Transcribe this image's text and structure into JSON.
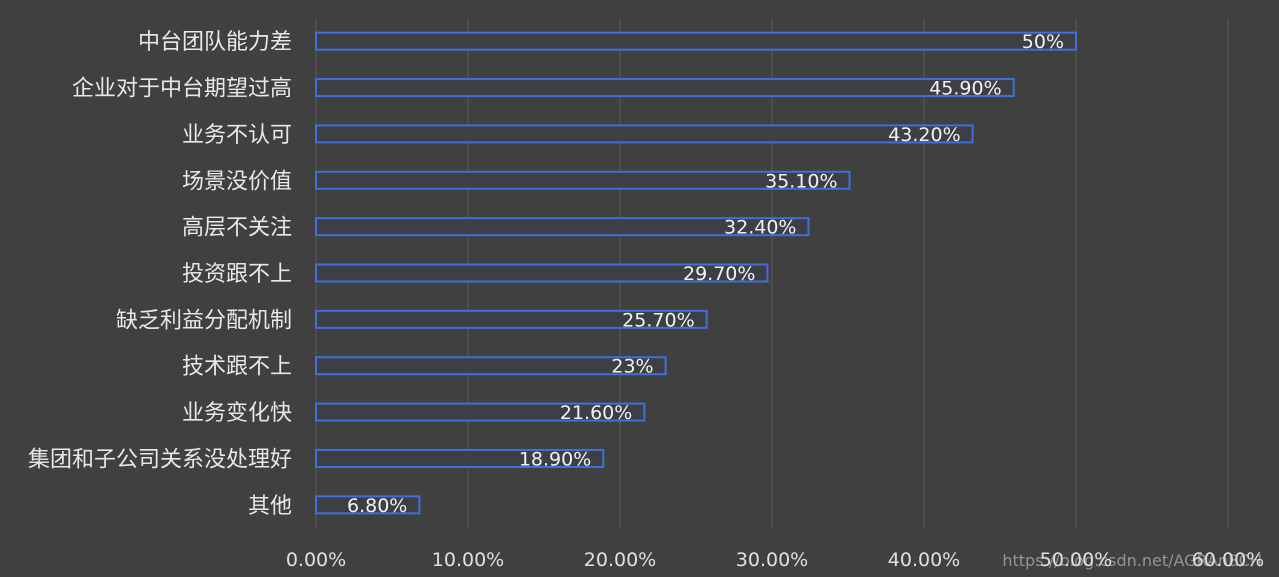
{
  "chart_data": {
    "type": "bar",
    "orientation": "horizontal",
    "categories": [
      "中台团队能力差",
      "企业对于中台期望过高",
      "业务不认可",
      "场景没价值",
      "高层不关注",
      "投资跟不上",
      "缺乏利益分配机制",
      "技术跟不上",
      "业务变化快",
      "集团和子公司关系没处理好",
      "其他"
    ],
    "values": [
      50,
      45.9,
      43.2,
      35.1,
      32.4,
      29.7,
      25.7,
      23,
      21.6,
      18.9,
      6.8
    ],
    "data_labels": [
      "50%",
      "45.90%",
      "43.20%",
      "35.10%",
      "32.40%",
      "29.70%",
      "25.70%",
      "23%",
      "21.60%",
      "18.90%",
      "6.80%"
    ],
    "xlim": [
      0,
      60
    ],
    "x_ticks": [
      0,
      10,
      20,
      30,
      40,
      50,
      60
    ],
    "x_tick_labels": [
      "0.00%",
      "10.00%",
      "20.00%",
      "30.00%",
      "40.00%",
      "50.00%",
      "60.00%"
    ],
    "grid": true,
    "legend": "none",
    "title": "",
    "xlabel": "",
    "ylabel": "",
    "colors": {
      "background": "#404040",
      "bar_outline": "#3f6fd8",
      "bar_fill": "#3d3f44",
      "grid": "#5a5a5a",
      "text": "#e8e8e8"
    }
  },
  "watermark": "https://blog.csdn.net/AGRAnBCH"
}
